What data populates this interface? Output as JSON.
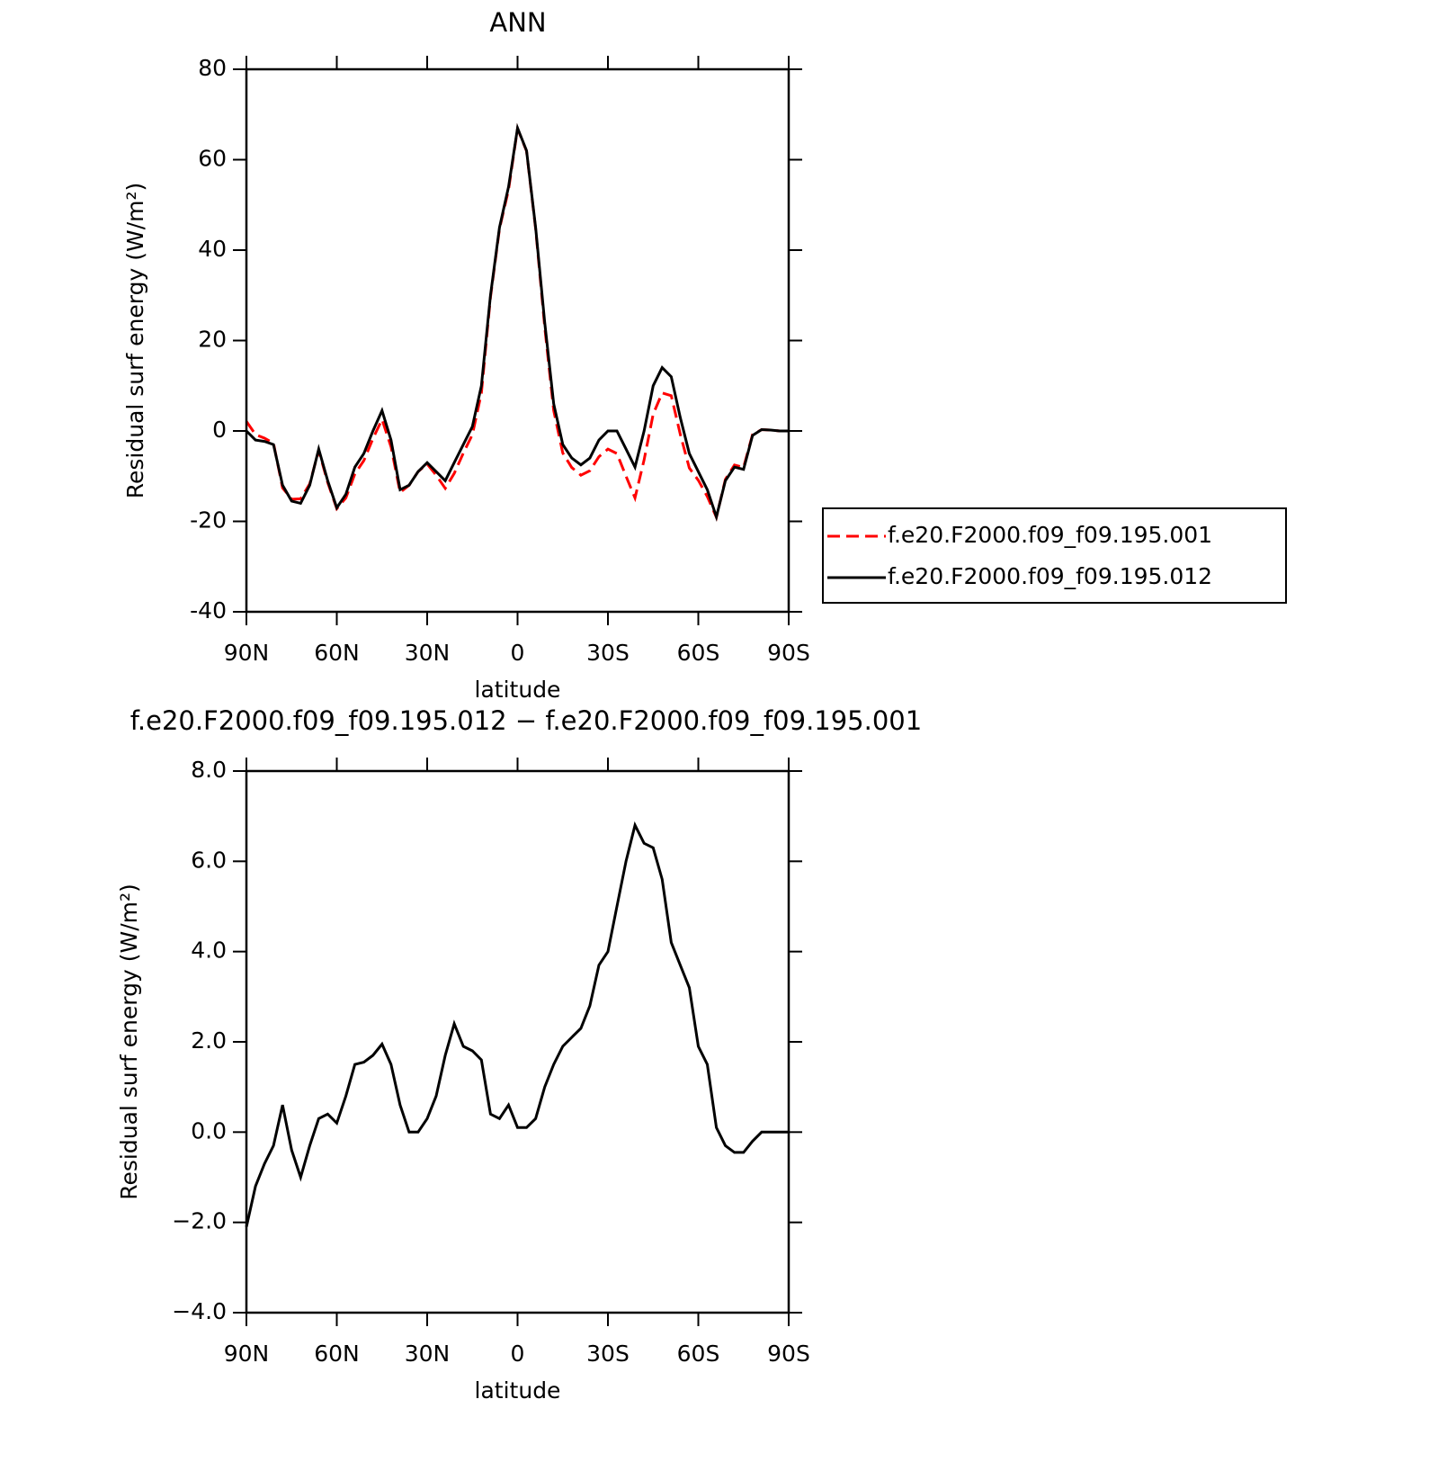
{
  "chart_data": [
    {
      "type": "line",
      "title": "ANN",
      "xlabel": "latitude",
      "ylabel": "Residual surf energy (W/m²)",
      "x": [
        90,
        87,
        84,
        81,
        78,
        75,
        72,
        69,
        66,
        63,
        60,
        57,
        54,
        51,
        48,
        45,
        42,
        39,
        36,
        33,
        30,
        27,
        24,
        21,
        18,
        15,
        12,
        9,
        6,
        3,
        0,
        -3,
        -6,
        -9,
        -12,
        -15,
        -18,
        -21,
        -24,
        -27,
        -30,
        -33,
        -36,
        -39,
        -42,
        -45,
        -48,
        -51,
        -54,
        -57,
        -60,
        -63,
        -66,
        -69,
        -72,
        -75,
        -78,
        -81,
        -84,
        -87,
        -90
      ],
      "series": [
        {
          "name": "f.e20.F2000.f09_f09.195.001",
          "color": "#ff0000",
          "line_style": "dashed",
          "values": [
            2.1,
            -0.8,
            -1.6,
            -2.7,
            -12.6,
            -15.1,
            -15,
            -11.7,
            -4.3,
            -11.4,
            -17.2,
            -14.8,
            -9.5,
            -6.55,
            -1.7,
            2.55,
            -3.5,
            -13.6,
            -12,
            -9,
            -7.3,
            -9.8,
            -12.7,
            -9.4,
            -4.9,
            -0.8,
            8.4,
            29.6,
            44.7,
            53.4,
            66.9,
            61.9,
            44.7,
            23,
            4.5,
            -4.9,
            -8.1,
            -9.8,
            -8.8,
            -5.7,
            -4,
            -5,
            -10,
            -14.8,
            -6.4,
            3.7,
            8.4,
            7.8,
            -0.7,
            -8.2,
            -10.9,
            -14.5,
            -19.1,
            -10.7,
            -7.55,
            -8.05,
            -0.8,
            0.3,
            0.2,
            0,
            0
          ]
        },
        {
          "name": "f.e20.F2000.f09_f09.195.012",
          "color": "#000000",
          "line_style": "solid",
          "values": [
            0,
            -2,
            -2.3,
            -3,
            -12,
            -15.5,
            -16,
            -12,
            -4,
            -11,
            -17,
            -14,
            -8,
            -5,
            0,
            4.5,
            -2,
            -13,
            -12,
            -9,
            -7,
            -9,
            -11,
            -7,
            -3,
            1,
            10,
            30,
            45,
            54,
            67,
            62,
            45,
            24,
            6,
            -3,
            -6,
            -7.5,
            -6,
            -2,
            0,
            0,
            -4,
            -8,
            0,
            10,
            14,
            12,
            3,
            -5,
            -9,
            -13,
            -19,
            -11,
            -8,
            -8.5,
            -1,
            0.3,
            0.2,
            0,
            0
          ]
        }
      ],
      "xlim": [
        90,
        -90
      ],
      "xticks": [
        {
          "value": 90,
          "label": "90N"
        },
        {
          "value": 60,
          "label": "60N"
        },
        {
          "value": 30,
          "label": "30N"
        },
        0,
        {
          "value": -30,
          "label": "30S"
        },
        {
          "value": -60,
          "label": "60S"
        },
        {
          "value": -90,
          "label": "90S"
        }
      ],
      "ylim": [
        -40,
        80
      ],
      "yticks": [
        -40,
        -20,
        0,
        20,
        40,
        60,
        80
      ],
      "legend": "right"
    },
    {
      "type": "line",
      "title": "f.e20.F2000.f09_f09.195.012 − f.e20.F2000.f09_f09.195.001",
      "xlabel": "latitude",
      "ylabel": "Residual surf energy (W/m²)",
      "x": [
        90,
        87,
        84,
        81,
        78,
        75,
        72,
        69,
        66,
        63,
        60,
        57,
        54,
        51,
        48,
        45,
        42,
        39,
        36,
        33,
        30,
        27,
        24,
        21,
        18,
        15,
        12,
        9,
        6,
        3,
        0,
        -3,
        -6,
        -9,
        -12,
        -15,
        -18,
        -21,
        -24,
        -27,
        -30,
        -33,
        -36,
        -39,
        -42,
        -45,
        -48,
        -51,
        -54,
        -57,
        -60,
        -63,
        -66,
        -69,
        -72,
        -75,
        -78,
        -81,
        -84,
        -87,
        -90
      ],
      "values": [
        -2.1,
        -1.2,
        -0.7,
        -0.3,
        0.6,
        -0.4,
        -1.0,
        -0.3,
        0.3,
        0.4,
        0.2,
        0.8,
        1.5,
        1.55,
        1.7,
        1.95,
        1.5,
        0.6,
        0.0,
        0.0,
        0.3,
        0.8,
        1.7,
        2.4,
        1.9,
        1.8,
        1.6,
        0.4,
        0.3,
        0.6,
        0.1,
        0.1,
        0.3,
        1.0,
        1.5,
        1.9,
        2.1,
        2.3,
        2.8,
        3.7,
        4.0,
        5.0,
        6.0,
        6.8,
        6.4,
        6.3,
        5.6,
        4.2,
        3.7,
        3.2,
        1.9,
        1.5,
        0.1,
        -0.3,
        -0.45,
        -0.45,
        -0.2,
        0.0,
        0.0,
        0.0,
        0.0
      ],
      "color": "#000000",
      "xlim": [
        90,
        -90
      ],
      "xticks": [
        {
          "value": 90,
          "label": "90N"
        },
        {
          "value": 60,
          "label": "60N"
        },
        {
          "value": 30,
          "label": "30N"
        },
        0,
        {
          "value": -30,
          "label": "30S"
        },
        {
          "value": -60,
          "label": "60S"
        },
        {
          "value": -90,
          "label": "90S"
        }
      ],
      "ylim": [
        -4,
        8
      ],
      "yticks": [
        {
          "value": -4,
          "label": "−4.0"
        },
        {
          "value": -2,
          "label": "−2.0"
        },
        {
          "value": 0,
          "label": "0.0"
        },
        {
          "value": 2,
          "label": "2.0"
        },
        {
          "value": 4,
          "label": "4.0"
        },
        {
          "value": 6,
          "label": "6.0"
        },
        {
          "value": 8,
          "label": "8.0"
        }
      ]
    }
  ]
}
